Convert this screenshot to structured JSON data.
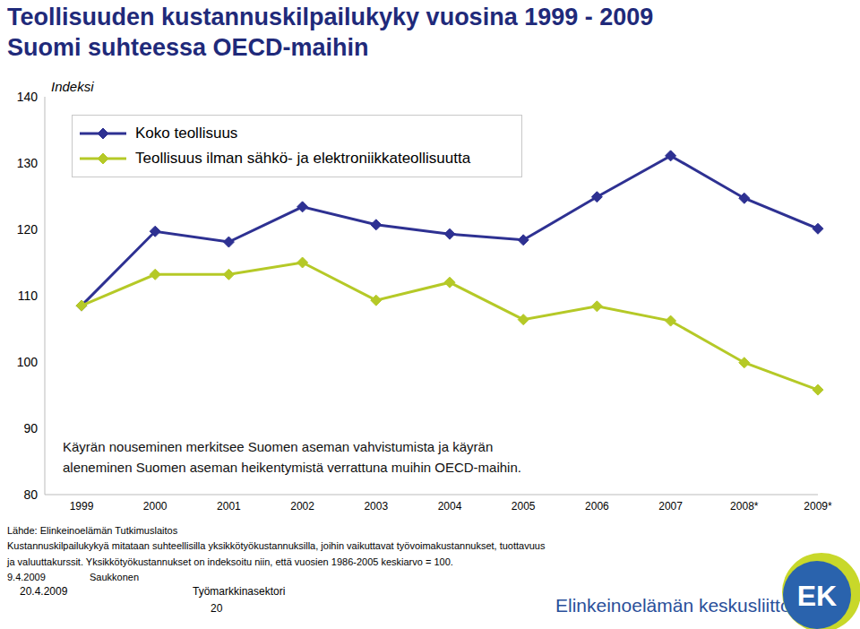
{
  "chart_data": {
    "type": "line",
    "title": "Teollisuuden kustannuskilpailukyky vuosina 1999 - 2009",
    "subtitle": "Suomi suhteessa OECD-maihin",
    "y_label": "Indeksi",
    "categories": [
      "1999",
      "2000",
      "2001",
      "2002",
      "2003",
      "2004",
      "2005",
      "2006",
      "2007",
      "2008*",
      "2009*"
    ],
    "series": [
      {
        "name": "Koko teollisuus",
        "color": "#2e3192",
        "marker": "diamond",
        "values": [
          108.5,
          119.7,
          118.1,
          123.4,
          120.7,
          119.3,
          118.4,
          124.9,
          131.1,
          124.7,
          120.1
        ]
      },
      {
        "name": "Teollisuus ilman sähkö- ja elektroniikkateollisuutta",
        "color": "#b5c927",
        "marker": "diamond",
        "values": [
          108.5,
          113.2,
          113.2,
          115.0,
          109.3,
          112.0,
          106.4,
          108.4,
          106.2,
          99.9,
          95.8
        ]
      }
    ],
    "ylim": [
      80,
      140
    ],
    "yticks": [
      80,
      90,
      100,
      110,
      120,
      130,
      140
    ],
    "grid": false,
    "legend": "upper left",
    "annotations": [
      "Käyrän nouseminen merkitsee Suomen aseman vahvistumista ja käyrän",
      "aleneminen Suomen aseman heikentymistä verrattuna muihin OECD-maihin."
    ]
  },
  "source": "Lähde: Elinkeinoelämän Tutkimuslaitos",
  "notes": [
    "Kustannuskilpailukykyä mitataan suhteellisilla yksikkötyökustannuksilla, joihin vaikuttavat työvoimakustannukset, tuottavuus",
    "ja valuuttakurssit. Yksikkötyökustannukset on indeksoitu niin, että vuosien 1986-2005 keskiarvo = 100."
  ],
  "footer": {
    "date": "9.4.2009",
    "author": "Saukkonen",
    "date2": "20.4.2009",
    "department": "Työmarkkinasektori",
    "page": "20",
    "organization": "Elinkeinoelämän keskusliitto",
    "logo": "EK"
  }
}
